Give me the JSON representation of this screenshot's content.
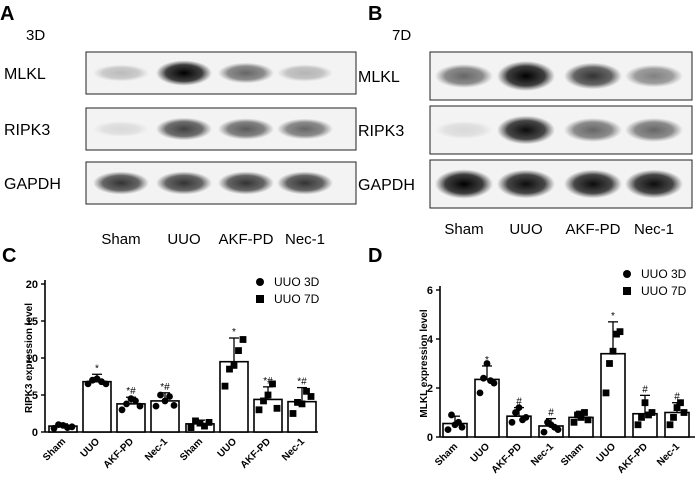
{
  "panels": {
    "A": {
      "letter": "A",
      "timepoint": "3D",
      "rows": [
        {
          "label": "MLKL",
          "intensities": [
            0.22,
            0.95,
            0.55,
            0.25
          ]
        },
        {
          "label": "RIPK3",
          "intensities": [
            0.1,
            0.7,
            0.6,
            0.55
          ]
        },
        {
          "label": "GAPDH",
          "intensities": [
            0.75,
            0.75,
            0.75,
            0.75
          ]
        }
      ],
      "lanes": [
        "Sham",
        "UUO",
        "AKF-PD",
        "Nec-1"
      ]
    },
    "B": {
      "letter": "B",
      "timepoint": "7D",
      "rows": [
        {
          "label": "MLKL",
          "intensities": [
            0.55,
            1.0,
            0.75,
            0.45
          ]
        },
        {
          "label": "RIPK3",
          "intensities": [
            0.1,
            0.9,
            0.55,
            0.55
          ]
        },
        {
          "label": "GAPDH",
          "intensities": [
            0.95,
            0.9,
            0.9,
            0.9
          ]
        }
      ],
      "lanes": [
        "Sham",
        "UUO",
        "AKF-PD",
        "Nec-1"
      ]
    },
    "C": {
      "letter": "C"
    },
    "D": {
      "letter": "D"
    }
  },
  "chart_data": [
    {
      "type": "bar",
      "panel": "C",
      "ylabel": "RIPK3 expression level",
      "ylim": [
        0,
        20
      ],
      "yticks": [
        0,
        5,
        10,
        15,
        20
      ],
      "categories": [
        "Sham",
        "UUO",
        "AKF-PD",
        "Nec-1"
      ],
      "legend": {
        "position": "top-right",
        "entries": [
          {
            "name": "UUO 3D",
            "marker": "circle"
          },
          {
            "name": "UUO 7D",
            "marker": "square"
          }
        ]
      },
      "series": [
        {
          "name": "UUO 3D",
          "marker": "circle",
          "values": [
            0.8,
            6.8,
            3.8,
            4.2
          ],
          "errors": [
            0.3,
            1.0,
            0.9,
            1.1
          ],
          "points": [
            [
              0.5,
              1.0,
              0.9,
              0.6,
              0.7
            ],
            [
              6.5,
              7.0,
              7.2,
              6.8,
              6.5
            ],
            [
              3.0,
              3.8,
              4.5,
              4.2,
              3.5
            ],
            [
              3.5,
              5.0,
              4.2,
              4.8,
              3.6
            ]
          ],
          "sig": [
            "",
            "*",
            "*#",
            "*#"
          ]
        },
        {
          "name": "UUO 7D",
          "marker": "square",
          "values": [
            1.1,
            9.5,
            4.4,
            4.1
          ],
          "errors": [
            0.5,
            3.2,
            1.7,
            1.9
          ],
          "points": [
            [
              0.6,
              1.5,
              1.2,
              0.8,
              1.3
            ],
            [
              6.2,
              8.5,
              9.0,
              11.0,
              12.5
            ],
            [
              3.0,
              4.2,
              5.0,
              6.5,
              3.2
            ],
            [
              2.5,
              4.0,
              3.8,
              5.5,
              4.8
            ]
          ],
          "sig": [
            "",
            "*",
            "*#",
            "*#"
          ]
        }
      ]
    },
    {
      "type": "bar",
      "panel": "D",
      "ylabel": "MLKL expression level",
      "ylim": [
        0,
        6
      ],
      "yticks": [
        0,
        2,
        4,
        6
      ],
      "categories": [
        "Sham",
        "UUO",
        "AKF-PD",
        "Nec-1"
      ],
      "legend": {
        "position": "top-right",
        "entries": [
          {
            "name": "UUO 3D",
            "marker": "circle"
          },
          {
            "name": "UUO 7D",
            "marker": "square"
          }
        ]
      },
      "series": [
        {
          "name": "UUO 3D",
          "marker": "circle",
          "values": [
            0.55,
            2.35,
            0.85,
            0.45
          ],
          "errors": [
            0.3,
            0.55,
            0.35,
            0.3
          ],
          "points": [
            [
              0.3,
              0.9,
              0.5,
              0.6,
              0.4
            ],
            [
              1.8,
              2.4,
              3.0,
              2.3,
              2.2
            ],
            [
              0.6,
              1.0,
              1.2,
              0.7,
              0.8
            ],
            [
              0.2,
              0.6,
              0.5,
              0.4,
              0.3
            ]
          ],
          "sig": [
            "",
            "*",
            "#",
            "#"
          ]
        },
        {
          "name": "UUO 7D",
          "marker": "square",
          "values": [
            0.8,
            3.4,
            0.95,
            1.0
          ],
          "errors": [
            0.25,
            1.3,
            0.75,
            0.4
          ],
          "points": [
            [
              0.6,
              0.9,
              0.8,
              1.0,
              0.7
            ],
            [
              1.8,
              3.0,
              3.5,
              4.2,
              4.3
            ],
            [
              0.5,
              0.8,
              1.4,
              0.9,
              1.0
            ],
            [
              0.5,
              0.8,
              1.2,
              1.4,
              1.0
            ]
          ],
          "sig": [
            "",
            "*",
            "#",
            "#"
          ]
        }
      ]
    }
  ]
}
